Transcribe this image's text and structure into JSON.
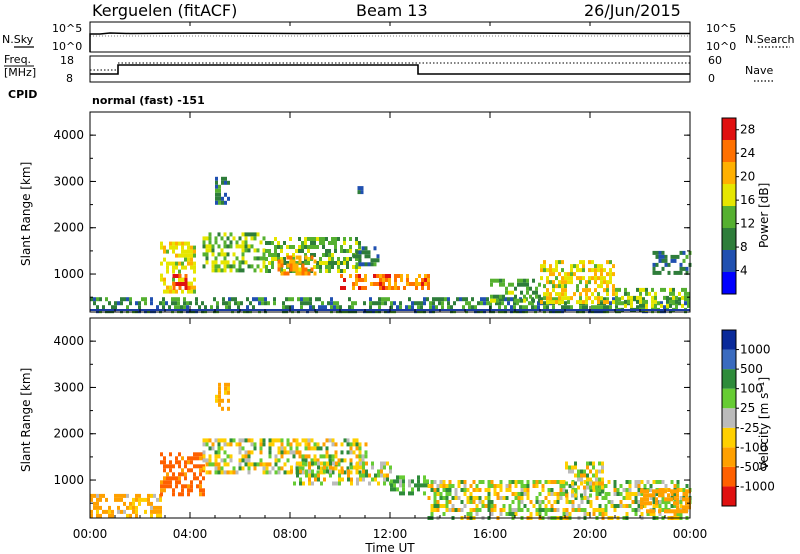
{
  "header": {
    "station": "Kerguelen (fitACF)",
    "beam": "Beam 13",
    "date": "26/Jun/2015"
  },
  "strip1": {
    "left_label": "N.Sky",
    "right_label": "N.Search",
    "left_ticks": [
      "10^5",
      "10^0"
    ],
    "right_ticks": [
      "10^5",
      "10^0"
    ]
  },
  "strip2": {
    "left_label_1": "Freq.",
    "left_label_2": "[MHz]",
    "cpid_label": "CPID",
    "right_label": "Nave",
    "left_ticks": [
      "18",
      "8"
    ],
    "right_ticks": [
      "60",
      "0"
    ]
  },
  "cpid_text": "normal (fast) -151",
  "xaxis": {
    "ticks": [
      "00:00",
      "04:00",
      "08:00",
      "12:00",
      "16:00",
      "20:00",
      "00:00"
    ],
    "label": "Time UT"
  },
  "colors": {
    "power": [
      "#0000ff",
      "#2050b0",
      "#2e7d3a",
      "#55b030",
      "#e6e600",
      "#ffb000",
      "#ff7000",
      "#e01010"
    ],
    "velocity": [
      "#e01010",
      "#ff6000",
      "#ffa000",
      "#ffd000",
      "#bbbbbb",
      "#66cc33",
      "#2e8b3a",
      "#3a6bbf",
      "#0a2a9a"
    ]
  },
  "chart_data": [
    {
      "type": "heatmap",
      "title": "",
      "ylabel": "Slant Range [km]",
      "xlabel": "Time UT",
      "xlim": [
        "00:00",
        "24:00"
      ],
      "ylim": [
        180,
        4500
      ],
      "yticks": [
        "4000",
        "3000",
        "2000",
        "1000"
      ],
      "colorbar": {
        "label": "Power [dB]",
        "ticks": [
          "28",
          "24",
          "20",
          "16",
          "12",
          "8",
          "4"
        ],
        "range": [
          0,
          30
        ]
      },
      "regions": [
        {
          "t_start": 0.0,
          "t_end": 24.0,
          "r_start": 200,
          "r_end": 500,
          "value_dB": 10
        },
        {
          "t_start": 2.8,
          "t_end": 4.2,
          "r_start": 600,
          "r_end": 1700,
          "value_dB": 18
        },
        {
          "t_start": 3.3,
          "t_end": 4.0,
          "r_start": 700,
          "r_end": 1000,
          "value_dB": 27
        },
        {
          "t_start": 4.5,
          "t_end": 7.0,
          "r_start": 1100,
          "r_end": 1900,
          "value_dB": 14
        },
        {
          "t_start": 7.0,
          "t_end": 10.8,
          "r_start": 1100,
          "r_end": 1800,
          "value_dB": 13
        },
        {
          "t_start": 7.5,
          "t_end": 9.0,
          "r_start": 1000,
          "r_end": 1400,
          "value_dB": 22
        },
        {
          "t_start": 10.0,
          "t_end": 13.5,
          "r_start": 700,
          "r_end": 1000,
          "value_dB": 24
        },
        {
          "t_start": 10.5,
          "t_end": 11.5,
          "r_start": 1200,
          "r_end": 1600,
          "value_dB": 8
        },
        {
          "t_start": 5.0,
          "t_end": 5.6,
          "r_start": 2500,
          "r_end": 3100,
          "value_dB": 8
        },
        {
          "t_start": 10.7,
          "t_end": 10.9,
          "r_start": 2800,
          "r_end": 2900,
          "value_dB": 8
        },
        {
          "t_start": 16.0,
          "t_end": 18.0,
          "r_start": 400,
          "r_end": 900,
          "value_dB": 12
        },
        {
          "t_start": 18.0,
          "t_end": 21.0,
          "r_start": 400,
          "r_end": 1300,
          "value_dB": 18
        },
        {
          "t_start": 21.0,
          "t_end": 24.0,
          "r_start": 200,
          "r_end": 700,
          "value_dB": 14
        },
        {
          "t_start": 22.5,
          "t_end": 24.0,
          "r_start": 1000,
          "r_end": 1500,
          "value_dB": 8
        }
      ]
    },
    {
      "type": "heatmap",
      "title": "",
      "ylabel": "Slant Range [km]",
      "xlabel": "Time UT",
      "xlim": [
        "00:00",
        "24:00"
      ],
      "ylim": [
        180,
        4500
      ],
      "yticks": [
        "4000",
        "3000",
        "2000",
        "1000"
      ],
      "colorbar": {
        "label": "Velocity [m s⁻¹]",
        "ticks": [
          "1000",
          "500",
          "100",
          "25",
          "-25",
          "-100",
          "-500",
          "-1000"
        ],
        "range": [
          -1000,
          1000
        ]
      },
      "regions": [
        {
          "t_start": 0.0,
          "t_end": 2.8,
          "r_start": 200,
          "r_end": 700,
          "value_ms": -150
        },
        {
          "t_start": 2.8,
          "t_end": 4.5,
          "r_start": 700,
          "r_end": 1600,
          "value_ms": -600
        },
        {
          "t_start": 4.5,
          "t_end": 11.0,
          "r_start": 1200,
          "r_end": 1900,
          "value_ms": 0
        },
        {
          "t_start": 8.0,
          "t_end": 12.0,
          "r_start": 900,
          "r_end": 1400,
          "value_ms": 0
        },
        {
          "t_start": 12.0,
          "t_end": 13.5,
          "r_start": 700,
          "r_end": 1100,
          "value_ms": 120
        },
        {
          "t_start": 13.5,
          "t_end": 24.0,
          "r_start": 200,
          "r_end": 1000,
          "value_ms": 0
        },
        {
          "t_start": 5.0,
          "t_end": 5.6,
          "r_start": 2500,
          "r_end": 3100,
          "value_ms": -200
        },
        {
          "t_start": 19.0,
          "t_end": 20.5,
          "r_start": 700,
          "r_end": 1400,
          "value_ms": 0
        },
        {
          "t_start": 22.0,
          "t_end": 24.0,
          "r_start": 300,
          "r_end": 800,
          "value_ms": -300
        }
      ]
    }
  ]
}
